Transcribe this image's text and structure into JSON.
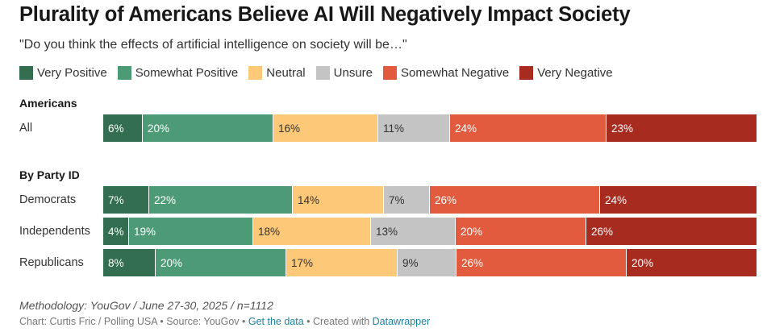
{
  "title": "Plurality of Americans Believe AI Will Negatively Impact Society",
  "subtitle": "\"Do you think the effects of artificial intelligence on society will be…\"",
  "legend": [
    {
      "label": "Very Positive",
      "color": "#336e50"
    },
    {
      "label": "Somewhat Positive",
      "color": "#4d9a76"
    },
    {
      "label": "Neutral",
      "color": "#fdc878"
    },
    {
      "label": "Unsure",
      "color": "#c4c4c4"
    },
    {
      "label": "Somewhat Negative",
      "color": "#e35b3e"
    },
    {
      "label": "Very Negative",
      "color": "#a82b1f"
    }
  ],
  "groups": {
    "americans": "Americans",
    "party": "By Party ID"
  },
  "footer": {
    "methodology": "Methodology: YouGov / June 27-30, 2025 / n=1112",
    "credit": "Chart: Curtis Fric / Polling USA • Source: YouGov • ",
    "get_data": "Get the data",
    "created": " • Created with ",
    "datawrapper": "Datawrapper"
  },
  "chart_data": {
    "type": "bar",
    "orientation": "horizontal",
    "stacked": true,
    "normalized": true,
    "categories": [
      "All",
      "Democrats",
      "Independents",
      "Republicans"
    ],
    "series": [
      {
        "name": "Very Positive",
        "values": [
          6,
          7,
          4,
          8
        ]
      },
      {
        "name": "Somewhat Positive",
        "values": [
          20,
          22,
          19,
          20
        ]
      },
      {
        "name": "Neutral",
        "values": [
          16,
          14,
          18,
          17
        ]
      },
      {
        "name": "Unsure",
        "values": [
          11,
          7,
          13,
          9
        ]
      },
      {
        "name": "Somewhat Negative",
        "values": [
          24,
          26,
          20,
          26
        ]
      },
      {
        "name": "Very Negative",
        "values": [
          23,
          24,
          26,
          20
        ]
      }
    ],
    "labels": [
      [
        "6%",
        "20%",
        "16%",
        "11%",
        "24%",
        "23%"
      ],
      [
        "7%",
        "22%",
        "14%",
        "7%",
        "26%",
        "24%"
      ],
      [
        "4%",
        "19%",
        "18%",
        "13%",
        "20%",
        "26%"
      ],
      [
        "8%",
        "20%",
        "17%",
        "9%",
        "26%",
        "20%"
      ]
    ],
    "value_suffix": "%"
  }
}
